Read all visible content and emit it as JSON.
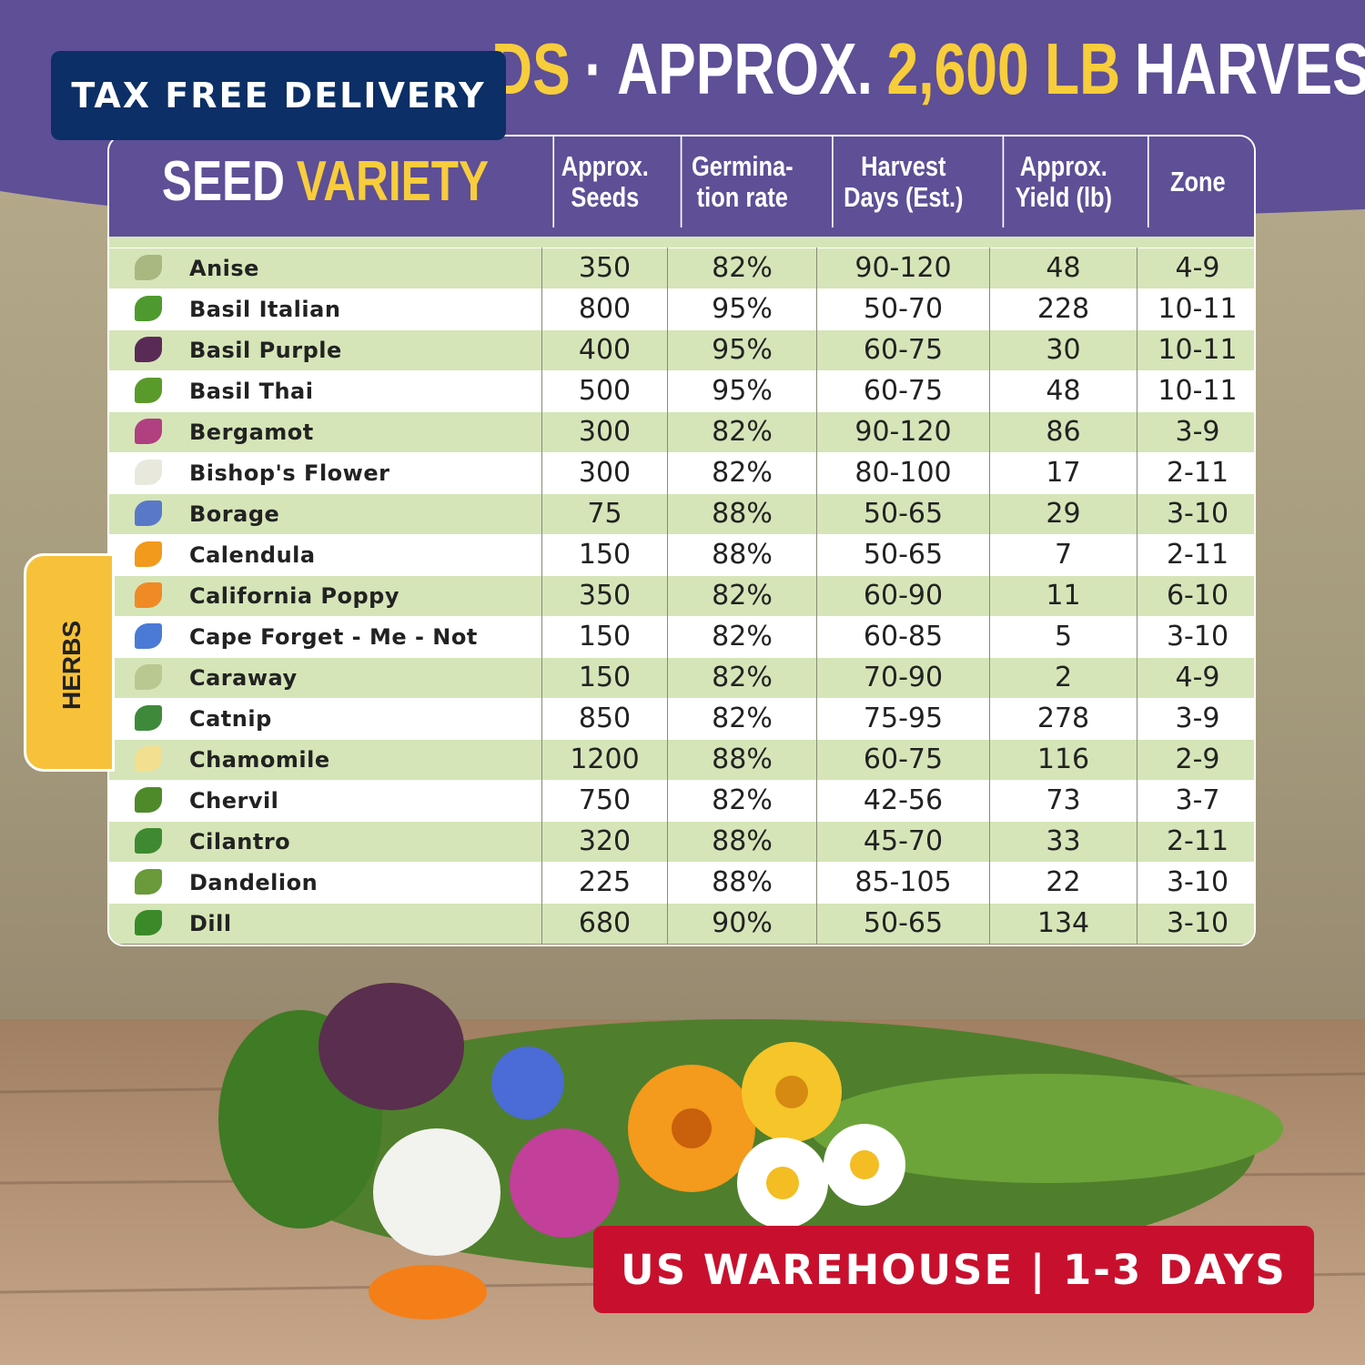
{
  "header": {
    "title_parts": [
      "DS",
      "· APPROX.",
      "2,600 LB",
      "HARVEST"
    ]
  },
  "badges": {
    "top": "TAX FREE DELIVERY",
    "bottom": "US WAREHOUSE | 1-3 DAYS"
  },
  "side_tab": "HERBS",
  "table": {
    "variety_title": [
      "SEED",
      "VARIETY"
    ],
    "columns": [
      "Approx.\nSeeds",
      "Germina-\ntion rate",
      "Harvest\nDays (Est.)",
      "Approx.\nYield (lb)",
      "Zone"
    ],
    "rows": [
      [
        "Anise",
        "350",
        "82%",
        "90-120",
        "48",
        "4-9"
      ],
      [
        "Basil Italian",
        "800",
        "95%",
        "50-70",
        "228",
        "10-11"
      ],
      [
        "Basil Purple",
        "400",
        "95%",
        "60-75",
        "30",
        "10-11"
      ],
      [
        "Basil Thai",
        "500",
        "95%",
        "60-75",
        "48",
        "10-11"
      ],
      [
        "Bergamot",
        "300",
        "82%",
        "90-120",
        "86",
        "3-9"
      ],
      [
        "Bishop's Flower",
        "300",
        "82%",
        "80-100",
        "17",
        "2-11"
      ],
      [
        "Borage",
        "75",
        "88%",
        "50-65",
        "29",
        "3-10"
      ],
      [
        "Calendula",
        "150",
        "88%",
        "50-65",
        "7",
        "2-11"
      ],
      [
        "California Poppy",
        "350",
        "82%",
        "60-90",
        "11",
        "6-10"
      ],
      [
        "Cape Forget - Me - Not",
        "150",
        "82%",
        "60-85",
        "5",
        "3-10"
      ],
      [
        "Caraway",
        "150",
        "82%",
        "70-90",
        "2",
        "4-9"
      ],
      [
        "Catnip",
        "850",
        "82%",
        "75-95",
        "278",
        "3-9"
      ],
      [
        "Chamomile",
        "1200",
        "88%",
        "60-75",
        "116",
        "2-9"
      ],
      [
        "Chervil",
        "750",
        "82%",
        "42-56",
        "73",
        "3-7"
      ],
      [
        "Cilantro",
        "320",
        "88%",
        "45-70",
        "33",
        "2-11"
      ],
      [
        "Dandelion",
        "225",
        "88%",
        "85-105",
        "22",
        "3-10"
      ],
      [
        "Dill",
        "680",
        "90%",
        "50-65",
        "134",
        "3-10"
      ]
    ]
  }
}
